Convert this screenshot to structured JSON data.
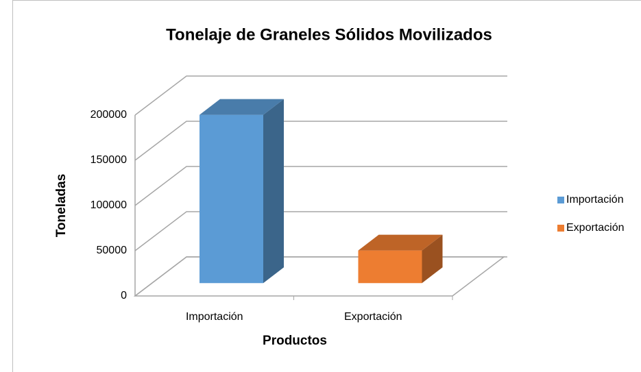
{
  "chart_data": {
    "type": "bar3d",
    "title": "Tonelaje de Graneles Sólidos Movilizados",
    "x_label": "Productos",
    "y_label": "Toneladas",
    "categories": [
      "Importación",
      "Exportación"
    ],
    "series": [
      {
        "name": "Importación",
        "color": "#5b9bd5",
        "values": [
          186000,
          null
        ]
      },
      {
        "name": "Exportación",
        "color": "#ed7d31",
        "values": [
          null,
          36000
        ]
      }
    ],
    "ylim": [
      0,
      200000
    ],
    "yticks": [
      0,
      50000,
      100000,
      150000,
      200000
    ],
    "grid": true,
    "legend": "right"
  }
}
